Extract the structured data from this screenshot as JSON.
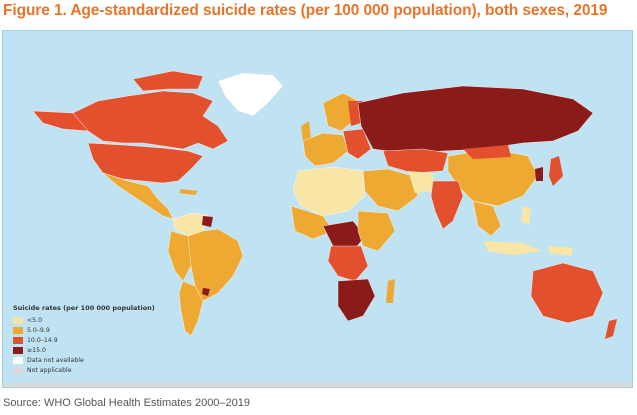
{
  "title": "Figure 1. Age-standardized suicide rates (per 100 000 population), both sexes, 2019",
  "legend": {
    "title": "Suicide rates (per 100 000 population)",
    "items": [
      {
        "label": "<5.0",
        "color": "#f9e6a6"
      },
      {
        "label": "5.0–9.9",
        "color": "#eda932"
      },
      {
        "label": "10.0–14.9",
        "color": "#e2502e"
      },
      {
        "label": "≥15.0",
        "color": "#8a1b18"
      },
      {
        "label": "Data not available",
        "color": "#ffffff"
      },
      {
        "label": "Not applicable",
        "color": "#d9d9d9"
      }
    ]
  },
  "source": "Source: WHO Global Health Estimates 2000–2019",
  "colors": {
    "ocean": "#bfe3f2",
    "title": "#e8742b"
  }
}
